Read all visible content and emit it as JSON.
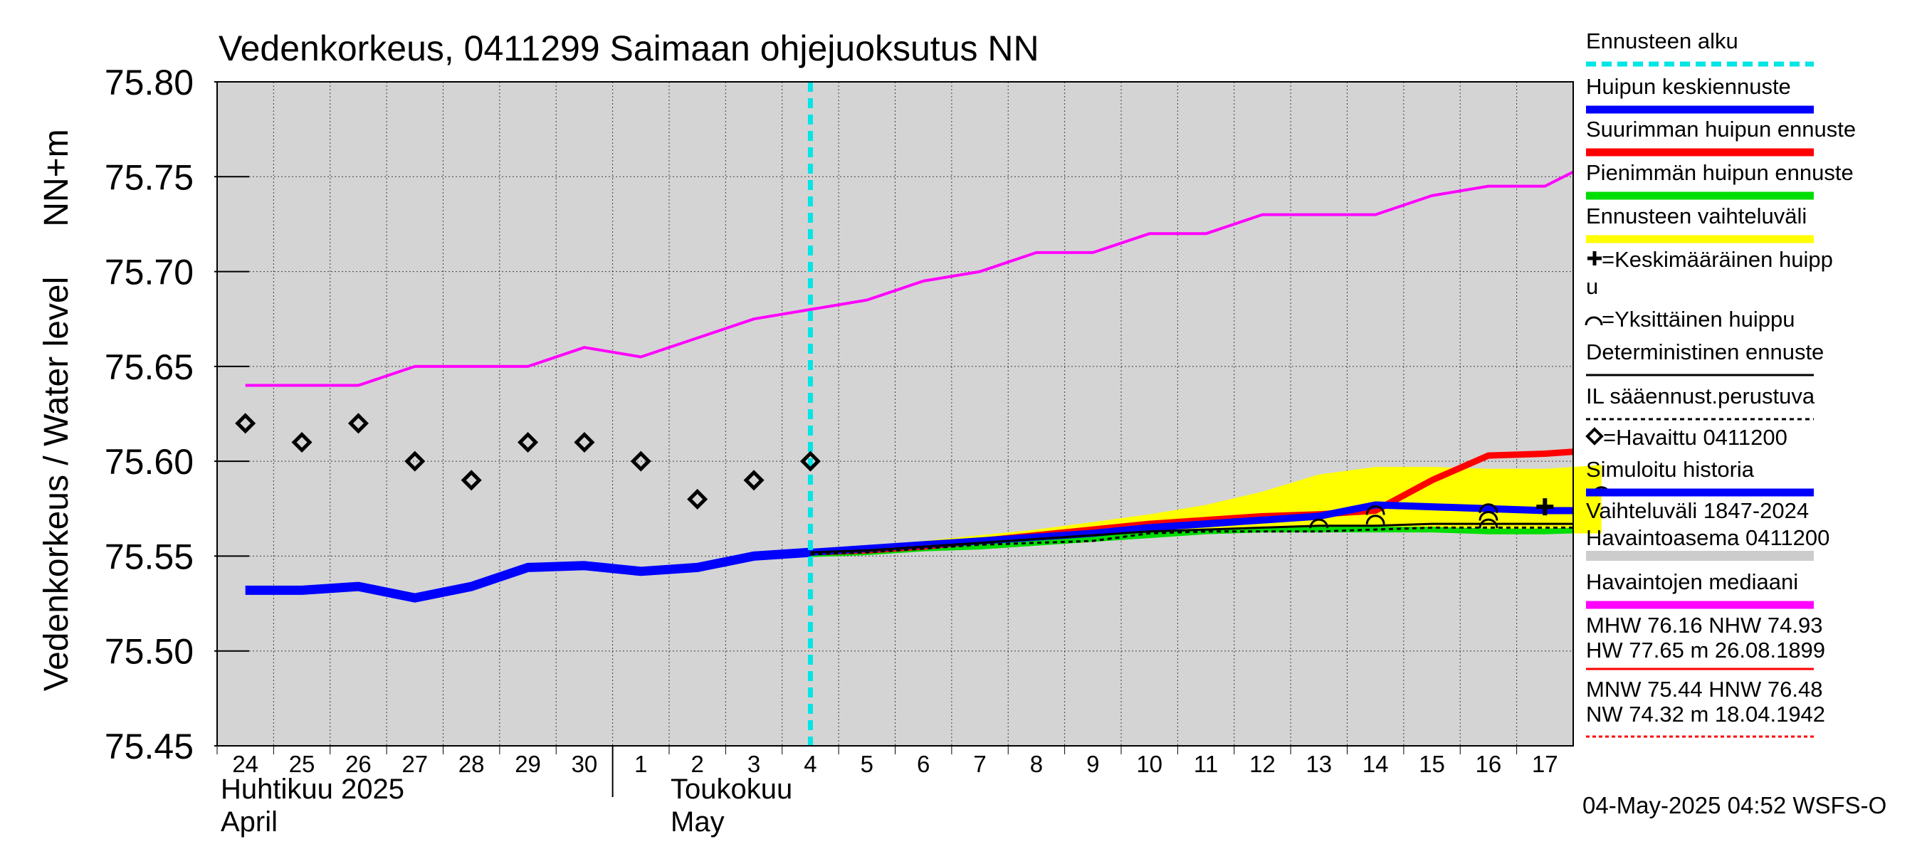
{
  "chart_data": {
    "type": "line",
    "title": "Vedenkorkeus, 0411299 Saimaan ohjejuoksutus NN",
    "ylabel_left": "Vedenkorkeus / Water level",
    "ylabel_unit": "NN+m",
    "ylim": [
      75.45,
      75.8
    ],
    "yticks": [
      "75.80",
      "75.75",
      "75.70",
      "75.65",
      "75.60",
      "75.55",
      "75.50",
      "75.45"
    ],
    "x_start": "2025-04-24",
    "x_end": "2025-05-17",
    "x_day_labels": [
      "24",
      "25",
      "26",
      "27",
      "28",
      "29",
      "30",
      "1",
      "2",
      "3",
      "4",
      "5",
      "6",
      "7",
      "8",
      "9",
      "10",
      "11",
      "12",
      "13",
      "14",
      "15",
      "16",
      "17"
    ],
    "month_labels": [
      {
        "fi": "Huhtikuu  2025",
        "en": "April",
        "start": "2025-04-24"
      },
      {
        "fi": "Toukokuu",
        "en": "May",
        "start": "2025-05-01"
      }
    ],
    "forecast_start": "2025-05-04",
    "series": [
      {
        "name": "Havaintojen mediaani",
        "color": "#ff00ff",
        "x": [
          "2025-04-24",
          "2025-04-25",
          "2025-04-26",
          "2025-04-27",
          "2025-04-28",
          "2025-04-29",
          "2025-04-30",
          "2025-05-01",
          "2025-05-02",
          "2025-05-03",
          "2025-05-04",
          "2025-05-05",
          "2025-05-06",
          "2025-05-07",
          "2025-05-08",
          "2025-05-09",
          "2025-05-10",
          "2025-05-11",
          "2025-05-12",
          "2025-05-13",
          "2025-05-14",
          "2025-05-15",
          "2025-05-16",
          "2025-05-17",
          "2025-05-18"
        ],
        "y": [
          75.64,
          75.64,
          75.64,
          75.65,
          75.65,
          75.65,
          75.66,
          75.655,
          75.665,
          75.675,
          75.68,
          75.685,
          75.695,
          75.7,
          75.71,
          75.71,
          75.72,
          75.72,
          75.73,
          75.73,
          75.73,
          75.74,
          75.745,
          75.745,
          75.76
        ]
      },
      {
        "name": "Simuloitu historia",
        "color": "#0000ff",
        "x": [
          "2025-04-24",
          "2025-04-25",
          "2025-04-26",
          "2025-04-27",
          "2025-04-28",
          "2025-04-29",
          "2025-04-30",
          "2025-05-01",
          "2025-05-02",
          "2025-05-03",
          "2025-05-04"
        ],
        "y": [
          75.532,
          75.532,
          75.534,
          75.528,
          75.534,
          75.544,
          75.545,
          75.542,
          75.544,
          75.55,
          75.552
        ]
      },
      {
        "name": "Huipun keskiennuste",
        "color": "#0000ff",
        "x": [
          "2025-05-04",
          "2025-05-05",
          "2025-05-06",
          "2025-05-07",
          "2025-05-08",
          "2025-05-09",
          "2025-05-10",
          "2025-05-11",
          "2025-05-12",
          "2025-05-13",
          "2025-05-14",
          "2025-05-15",
          "2025-05-16",
          "2025-05-17",
          "2025-05-18"
        ],
        "y": [
          75.552,
          75.554,
          75.556,
          75.558,
          75.56,
          75.562,
          75.565,
          75.567,
          75.569,
          75.571,
          75.577,
          75.576,
          75.575,
          75.574,
          75.574
        ]
      },
      {
        "name": "Suurimman huipun ennuste",
        "color": "#ff0000",
        "x": [
          "2025-05-04",
          "2025-05-05",
          "2025-05-06",
          "2025-05-07",
          "2025-05-08",
          "2025-05-09",
          "2025-05-10",
          "2025-05-11",
          "2025-05-12",
          "2025-05-13",
          "2025-05-14",
          "2025-05-15",
          "2025-05-16",
          "2025-05-17",
          "2025-05-18"
        ],
        "y": [
          75.552,
          75.553,
          75.555,
          75.558,
          75.561,
          75.564,
          75.567,
          75.569,
          75.571,
          75.572,
          75.574,
          75.59,
          75.603,
          75.604,
          75.606
        ]
      },
      {
        "name": "Pienimmän huipun ennuste",
        "color": "#00dd00",
        "x": [
          "2025-05-04",
          "2025-05-05",
          "2025-05-06",
          "2025-05-07",
          "2025-05-08",
          "2025-05-09",
          "2025-05-10",
          "2025-05-11",
          "2025-05-12",
          "2025-05-13",
          "2025-05-14",
          "2025-05-15",
          "2025-05-16",
          "2025-05-17",
          "2025-05-18"
        ],
        "y": [
          75.551,
          75.552,
          75.554,
          75.555,
          75.557,
          75.559,
          75.561,
          75.563,
          75.564,
          75.564,
          75.564,
          75.564,
          75.563,
          75.563,
          75.564
        ]
      },
      {
        "name": "Deterministinen ennuste",
        "color": "#000000",
        "x": [
          "2025-05-04",
          "2025-05-05",
          "2025-05-06",
          "2025-05-07",
          "2025-05-08",
          "2025-05-09",
          "2025-05-10",
          "2025-05-11",
          "2025-05-12",
          "2025-05-13",
          "2025-05-14",
          "2025-05-15",
          "2025-05-16",
          "2025-05-17",
          "2025-05-18"
        ],
        "y": [
          75.552,
          75.553,
          75.555,
          75.557,
          75.559,
          75.561,
          75.563,
          75.564,
          75.565,
          75.566,
          75.566,
          75.567,
          75.567,
          75.567,
          75.567
        ]
      },
      {
        "name": "IL sääennust.perustuva",
        "color": "#000000",
        "x": [
          "2025-05-04",
          "2025-05-05",
          "2025-05-06",
          "2025-05-07",
          "2025-05-08",
          "2025-05-09",
          "2025-05-10",
          "2025-05-11",
          "2025-05-12",
          "2025-05-13",
          "2025-05-14",
          "2025-05-15",
          "2025-05-16",
          "2025-05-17",
          "2025-05-18"
        ],
        "y": [
          75.551,
          75.552,
          75.554,
          75.556,
          75.557,
          75.558,
          75.562,
          75.563,
          75.563,
          75.563,
          75.564,
          75.565,
          75.565,
          75.565,
          75.565
        ]
      }
    ],
    "band": {
      "name": "Ennusteen vaihteluväli",
      "color": "#ffff00",
      "x": [
        "2025-05-04",
        "2025-05-05",
        "2025-05-06",
        "2025-05-07",
        "2025-05-08",
        "2025-05-09",
        "2025-05-10",
        "2025-05-11",
        "2025-05-12",
        "2025-05-13",
        "2025-05-14",
        "2025-05-15",
        "2025-05-16",
        "2025-05-17",
        "2025-05-18"
      ],
      "low": [
        75.551,
        75.552,
        75.553,
        75.555,
        75.557,
        75.559,
        75.561,
        75.563,
        75.563,
        75.563,
        75.563,
        75.563,
        75.562,
        75.562,
        75.562
      ],
      "high": [
        75.552,
        75.555,
        75.558,
        75.561,
        75.564,
        75.568,
        75.572,
        75.577,
        75.584,
        75.593,
        75.597,
        75.597,
        75.596,
        75.596,
        75.598
      ]
    },
    "observed": {
      "name": "Havaittu 0411200",
      "x": [
        "2025-04-24",
        "2025-04-25",
        "2025-04-26",
        "2025-04-27",
        "2025-04-28",
        "2025-04-29",
        "2025-04-30",
        "2025-05-01",
        "2025-05-02",
        "2025-05-03",
        "2025-05-04"
      ],
      "y": [
        75.62,
        75.61,
        75.62,
        75.6,
        75.59,
        75.61,
        75.61,
        75.6,
        75.58,
        75.59,
        75.6
      ]
    },
    "single_peaks": [
      {
        "x": "2025-05-13",
        "y": 75.567
      },
      {
        "x": "2025-05-14",
        "y": 75.569
      },
      {
        "x": "2025-05-14",
        "y": 75.574
      },
      {
        "x": "2025-05-16",
        "y": 75.567
      },
      {
        "x": "2025-05-16",
        "y": 75.571
      },
      {
        "x": "2025-05-16",
        "y": 75.575
      },
      {
        "x": "2025-05-18",
        "y": 75.584
      }
    ],
    "mean_peak": {
      "x": "2025-05-17",
      "y": 75.576
    },
    "legend": [
      {
        "label": "Ennusteen alku",
        "style": "dashed",
        "color": "#00e5e5"
      },
      {
        "label": "Huipun keskiennuste",
        "style": "solid",
        "color": "#0000ff"
      },
      {
        "label": "Suurimman huipun ennuste",
        "style": "solid",
        "color": "#ff0000"
      },
      {
        "label": "Pienimmän huipun ennuste",
        "style": "solid",
        "color": "#00dd00"
      },
      {
        "label": "Ennusteen vaihteluväli",
        "style": "solid",
        "color": "#ffff00"
      },
      {
        "label": "=Keskimääräinen huipp",
        "label2": "u",
        "style": "none",
        "color": "#000000"
      },
      {
        "label": "=Yksittäinen huippu",
        "style": "none",
        "color": "#000000"
      },
      {
        "label": "Deterministinen ennuste",
        "style": "thin",
        "color": "#000000"
      },
      {
        "label": "IL sääennust.perustuva",
        "style": "dotted",
        "color": "#000000"
      },
      {
        "label": "=Havaittu 0411200",
        "style": "none",
        "color": "#000000"
      },
      {
        "label": "Simuloitu historia",
        "style": "solid",
        "color": "#0000ff"
      },
      {
        "label": "Vaihteluväli 1847-2024",
        "label2": " Havaintoasema 0411200",
        "style": "gray",
        "color": "#cccccc"
      },
      {
        "label": "Havaintojen mediaani",
        "style": "solid",
        "color": "#ff00ff"
      }
    ],
    "stats": {
      "line1": "MHW  76.16 NHW  74.93",
      "line2": "HW  77.65 m 26.08.1899",
      "line3": "MNW  75.44 HNW  76.48",
      "line4": "NW  74.32 m 18.04.1942"
    },
    "footer": "04-May-2025 04:52 WSFS-O"
  }
}
